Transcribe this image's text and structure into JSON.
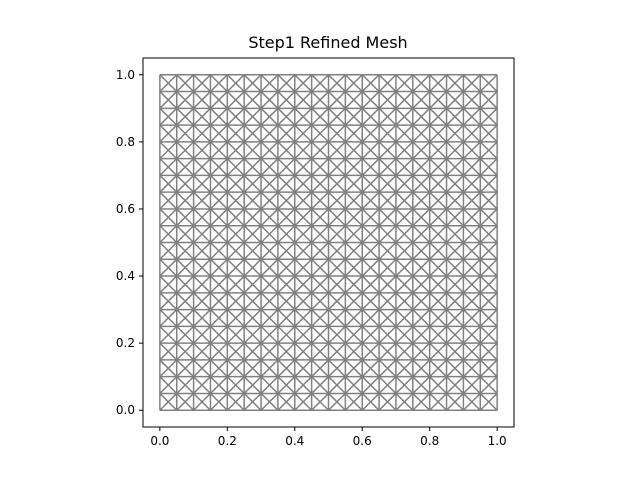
{
  "chart_data": {
    "type": "mesh",
    "title": "Step1 Refined Mesh",
    "xlabel": "",
    "ylabel": "",
    "xlim": [
      -0.05,
      1.05
    ],
    "ylim": [
      -0.05,
      1.05
    ],
    "x_ticks": [
      0.0,
      0.2,
      0.4,
      0.6,
      0.8,
      1.0
    ],
    "y_ticks": [
      0.0,
      0.2,
      0.4,
      0.6,
      0.8,
      1.0
    ],
    "x_tick_labels": [
      "0.0",
      "0.2",
      "0.4",
      "0.6",
      "0.8",
      "1.0"
    ],
    "y_tick_labels": [
      "0.0",
      "0.2",
      "0.4",
      "0.6",
      "0.8",
      "1.0"
    ],
    "mesh": {
      "domain": [
        [
          0.0,
          1.0
        ],
        [
          0.0,
          1.0
        ]
      ],
      "cells_per_side": 20,
      "pattern": "union-jack",
      "edge_color": "#808080"
    },
    "grid": false,
    "legend": "none"
  }
}
